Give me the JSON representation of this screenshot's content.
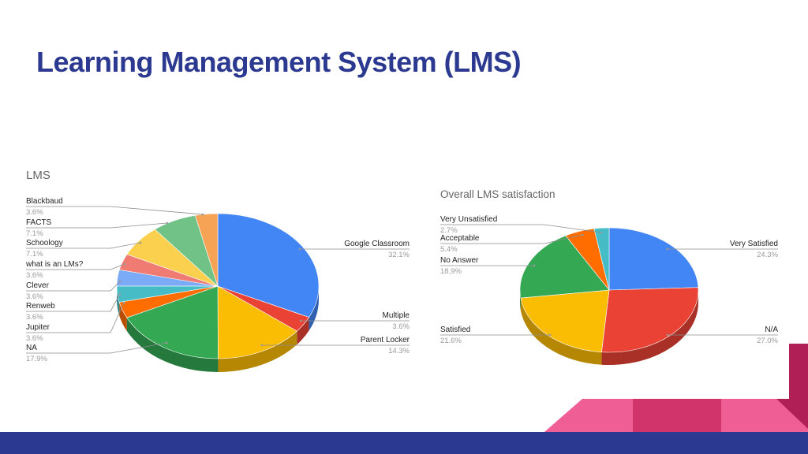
{
  "slide": {
    "title": "Learning Management System (LMS)"
  },
  "colors": {
    "title": "#2b3990",
    "footer": "#2b3990",
    "deco_pink": "#ef5f95",
    "deco_magenta": "#d1346b",
    "deco_dark": "#b01f55"
  },
  "chart_data": [
    {
      "type": "pie",
      "style": "3d",
      "title": "LMS",
      "slices": [
        {
          "label": "Google Classroom",
          "value": 32.1,
          "display": "32.1%",
          "color": "#4285f4"
        },
        {
          "label": "Multiple",
          "value": 3.6,
          "display": "3.6%",
          "color": "#ea4335"
        },
        {
          "label": "Parent Locker",
          "value": 14.3,
          "display": "14.3%",
          "color": "#fbbc04"
        },
        {
          "label": "NA",
          "value": 17.9,
          "display": "17.9%",
          "color": "#34a853"
        },
        {
          "label": "Jupiter",
          "value": 3.6,
          "display": "3.6%",
          "color": "#ff6d01"
        },
        {
          "label": "Renweb",
          "value": 3.6,
          "display": "3.6%",
          "color": "#46bdc6"
        },
        {
          "label": "Clever",
          "value": 3.6,
          "display": "3.6%",
          "color": "#7baaf7"
        },
        {
          "label": "what is an LMs?",
          "value": 3.6,
          "display": "3.6%",
          "color": "#f07b72"
        },
        {
          "label": "Schoology",
          "value": 7.1,
          "display": "7.1%",
          "color": "#fcd04f"
        },
        {
          "label": "FACTS",
          "value": 7.1,
          "display": "7.1%",
          "color": "#71c287"
        },
        {
          "label": "Blackbaud",
          "value": 3.6,
          "display": "3.6%",
          "color": "#f6a356"
        }
      ]
    },
    {
      "type": "pie",
      "style": "3d",
      "title": "Overall LMS satisfaction",
      "slices": [
        {
          "label": "Very Satisfied",
          "value": 24.3,
          "display": "24.3%",
          "color": "#4285f4"
        },
        {
          "label": "N/A",
          "value": 27.0,
          "display": "27.0%",
          "color": "#ea4335"
        },
        {
          "label": "Satisfied",
          "value": 21.6,
          "display": "21.6%",
          "color": "#fbbc04"
        },
        {
          "label": "No Answer",
          "value": 18.9,
          "display": "18.9%",
          "color": "#34a853"
        },
        {
          "label": "Acceptable",
          "value": 5.4,
          "display": "5.4%",
          "color": "#ff6d01"
        },
        {
          "label": "Very Unsatisfied",
          "value": 2.7,
          "display": "2.7%",
          "color": "#46bdc6"
        }
      ]
    }
  ]
}
